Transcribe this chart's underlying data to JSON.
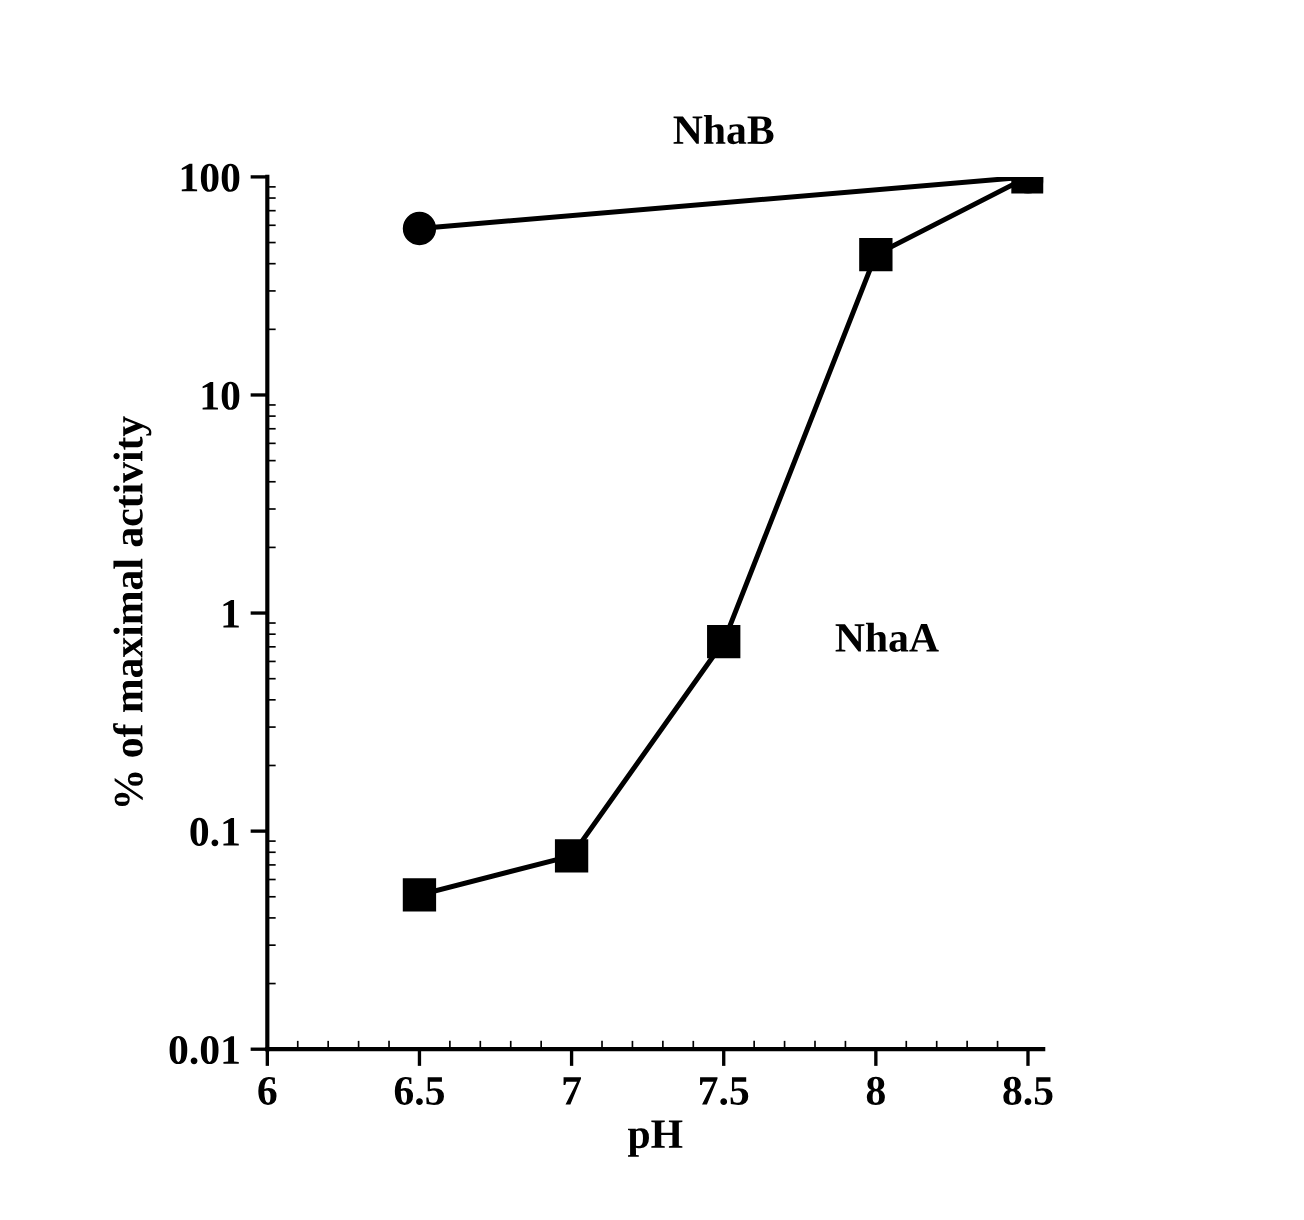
{
  "chart_data": {
    "type": "line",
    "xlabel": "pH",
    "ylabel": "% of maximal activity",
    "log": "y",
    "xlim": [
      6,
      8.55
    ],
    "xticks": [
      6,
      6.5,
      7,
      7.5,
      8,
      8.5
    ],
    "ylim": [
      0.01,
      100
    ],
    "yticks": [
      {
        "value": 0.01,
        "label": "0.01"
      },
      {
        "value": 0.1,
        "label": "0.1"
      },
      {
        "value": 1,
        "label": "1"
      },
      {
        "value": 10,
        "label": "10"
      },
      {
        "value": 100,
        "label": "100"
      }
    ],
    "grid": false,
    "legend": false,
    "line_style": "solid",
    "series": [
      {
        "name": "NhaB",
        "color": "#000000",
        "marker": "circle",
        "x": [
          6.5,
          8.5
        ],
        "values": [
          58,
          100
        ]
      },
      {
        "name": "NhaA",
        "color": "#000000",
        "marker": "square",
        "x": [
          6.5,
          7,
          7.5,
          8,
          8.5
        ],
        "values": [
          0.051,
          0.077,
          0.74,
          44,
          100
        ]
      }
    ]
  }
}
